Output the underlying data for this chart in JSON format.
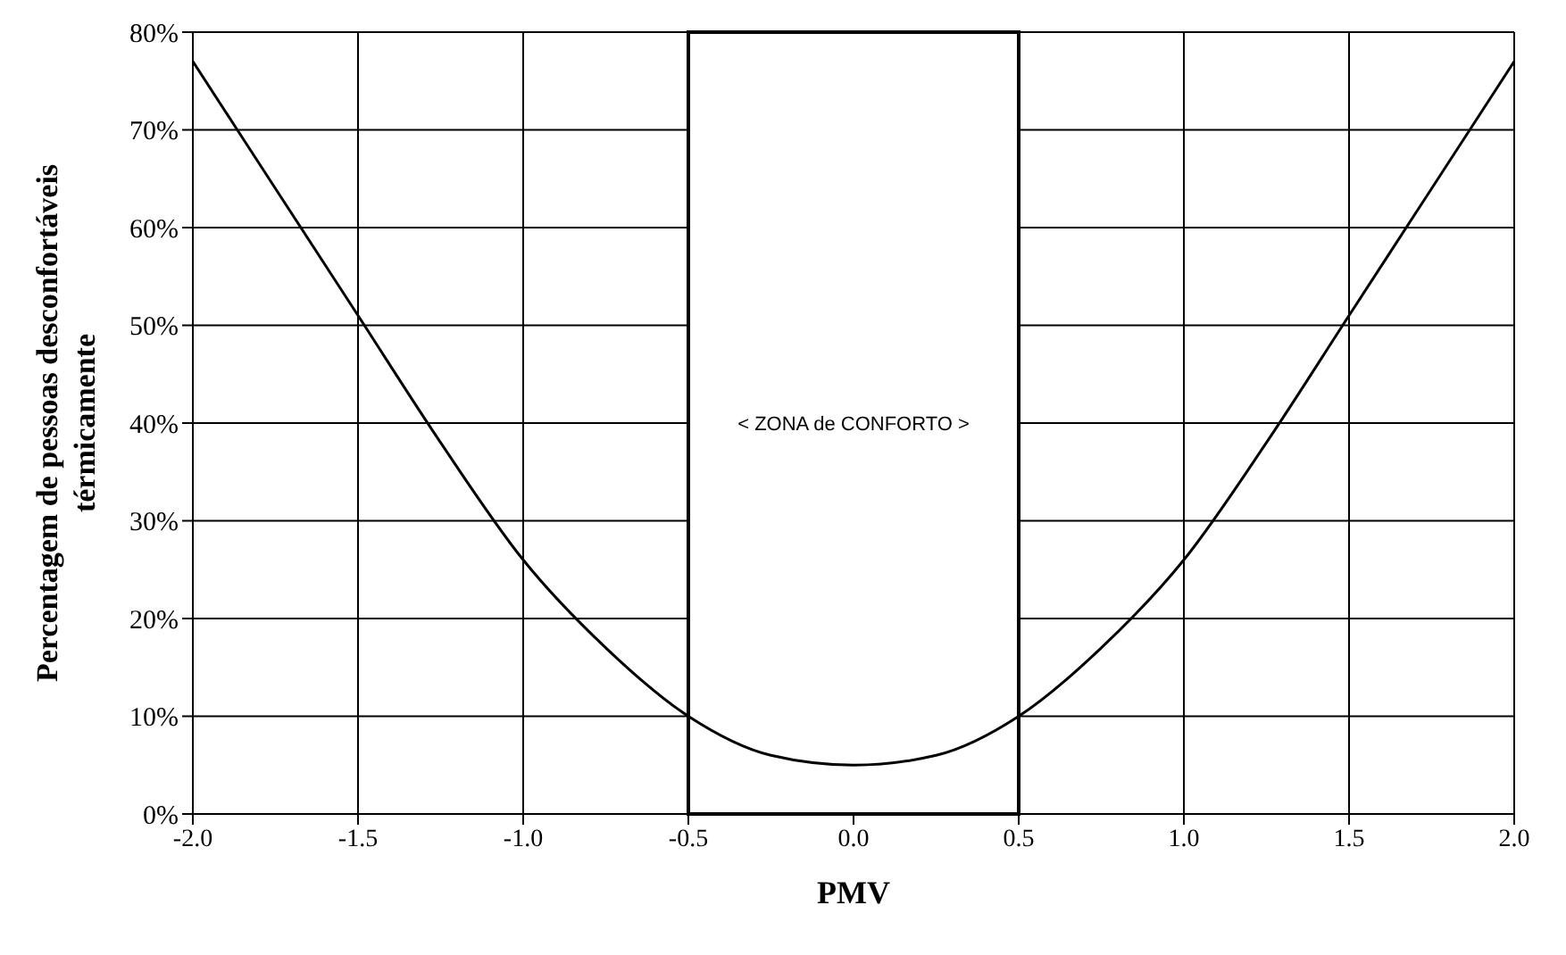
{
  "chart_data": {
    "type": "line",
    "xlabel": "PMV",
    "ylabel": "Percentagem de pessoas desconfortáveis térmicamente",
    "x": [
      -2,
      -1.75,
      -1.5,
      -1.25,
      -1,
      -0.75,
      -0.5,
      -0.25,
      0,
      0.25,
      0.5,
      0.75,
      1,
      1.25,
      1.5,
      1.75,
      2
    ],
    "series": [
      {
        "color": "#000000",
        "values": [
          77,
          64,
          51,
          38,
          26,
          17,
          10,
          6,
          5,
          6,
          10,
          17,
          26,
          38,
          51,
          64,
          77
        ]
      }
    ],
    "xlim": [
      -2,
      2
    ],
    "xticks": [
      {
        "value": -2,
        "label": "-2.0"
      },
      {
        "value": -1.5,
        "label": "-1.5"
      },
      {
        "value": -1,
        "label": "-1.0"
      },
      {
        "value": -0.5,
        "label": "-0.5"
      },
      {
        "value": 0,
        "label": "0.0"
      },
      {
        "value": 0.5,
        "label": "0.5"
      },
      {
        "value": 1,
        "label": "1.0"
      },
      {
        "value": 1.5,
        "label": "1.5"
      },
      {
        "value": 2,
        "label": "2.0"
      }
    ],
    "ylim": [
      0,
      80
    ],
    "yticks": [
      {
        "value": 0,
        "label": "0%"
      },
      {
        "value": 10,
        "label": "10%"
      },
      {
        "value": 20,
        "label": "20%"
      },
      {
        "value": 30,
        "label": "30%"
      },
      {
        "value": 40,
        "label": "40%"
      },
      {
        "value": 50,
        "label": "50%"
      },
      {
        "value": 60,
        "label": "60%"
      },
      {
        "value": 70,
        "label": "70%"
      },
      {
        "value": 80,
        "label": "80%"
      }
    ],
    "grid": true,
    "marker": "none",
    "line_style": "solid",
    "bands": [
      {
        "axis": "x",
        "from": -0.5,
        "to": 0.5,
        "label": "<    ZONA de CONFORTO    >"
      }
    ]
  }
}
